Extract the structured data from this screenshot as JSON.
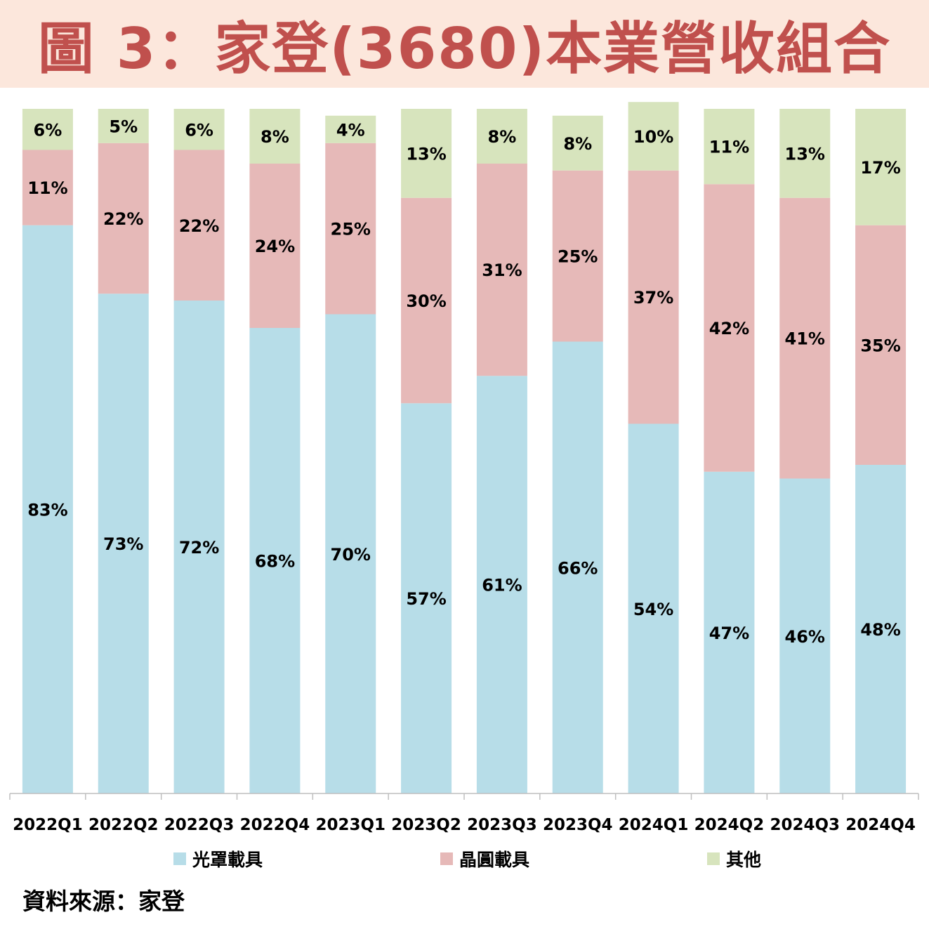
{
  "title": "圖 3：家登(3680)本業營收組合",
  "source": "資料來源：家登",
  "colors": {
    "title_text": "#c0504d",
    "title_background": "#fce7dc",
    "series": [
      "#b7dde8",
      "#e6b9b8",
      "#d7e4bd"
    ]
  },
  "chart_data": {
    "type": "bar",
    "stacked": true,
    "categories": [
      "2022Q1",
      "2022Q2",
      "2022Q3",
      "2022Q4",
      "2023Q1",
      "2023Q2",
      "2023Q3",
      "2023Q4",
      "2024Q1",
      "2024Q2",
      "2024Q3",
      "2024Q4"
    ],
    "series": [
      {
        "name": "光罩載具",
        "values": [
          83,
          73,
          72,
          68,
          70,
          57,
          61,
          66,
          54,
          47,
          46,
          48
        ],
        "labels": [
          "83%",
          "73%",
          "72%",
          "68%",
          "70%",
          "57%",
          "61%",
          "66%",
          "54%",
          "47%",
          "46%",
          "48%"
        ]
      },
      {
        "name": "晶圓載具",
        "values": [
          11,
          22,
          22,
          24,
          25,
          30,
          31,
          25,
          37,
          42,
          41,
          35
        ],
        "labels": [
          "11%",
          "22%",
          "22%",
          "24%",
          "25%",
          "30%",
          "31%",
          "25%",
          "37%",
          "42%",
          "41%",
          "35%"
        ]
      },
      {
        "name": "其他",
        "values": [
          6,
          5,
          6,
          8,
          4,
          13,
          8,
          8,
          10,
          11,
          13,
          17
        ],
        "labels": [
          "6%",
          "5%",
          "6%",
          "8%",
          "4%",
          "13%",
          "8%",
          "8%",
          "10%",
          "11%",
          "13%",
          "17%"
        ]
      }
    ],
    "ylim": [
      0,
      100
    ],
    "legend_position": "bottom",
    "grid": false
  }
}
